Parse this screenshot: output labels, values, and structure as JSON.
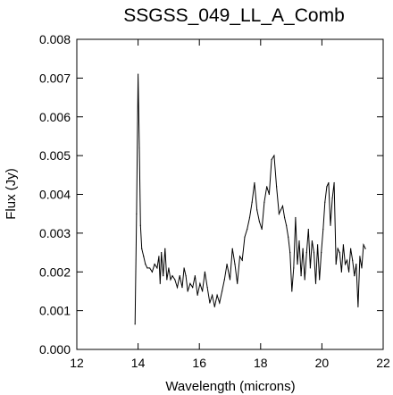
{
  "chart_data": {
    "type": "line",
    "title": "SSGSS_049_LL_A_Comb",
    "xlabel": "Wavelength (microns)",
    "ylabel": "Flux (Jy)",
    "xlim": [
      12,
      22
    ],
    "ylim": [
      0.0,
      0.008
    ],
    "x_ticks": [
      "12",
      "14",
      "16",
      "18",
      "20",
      "22"
    ],
    "y_ticks": [
      "0.000",
      "0.001",
      "0.002",
      "0.003",
      "0.004",
      "0.005",
      "0.006",
      "0.007",
      "0.008"
    ],
    "grid": false,
    "line_color": "#000000",
    "series": [
      {
        "x": [
          13.9,
          13.95,
          14.0,
          14.04,
          14.08,
          14.12,
          14.18,
          14.24,
          14.3,
          14.38,
          14.46,
          14.54,
          14.62,
          14.68,
          14.72,
          14.76,
          14.82,
          14.88,
          14.94,
          15.0,
          15.06,
          15.12,
          15.2,
          15.28,
          15.36,
          15.44,
          15.5,
          15.56,
          15.62,
          15.7,
          15.78,
          15.86,
          15.94,
          16.02,
          16.1,
          16.18,
          16.26,
          16.34,
          16.42,
          16.5,
          16.58,
          16.66,
          16.74,
          16.82,
          16.9,
          17.0,
          17.08,
          17.16,
          17.24,
          17.32,
          17.4,
          17.48,
          17.56,
          17.64,
          17.72,
          17.8,
          17.88,
          17.96,
          18.04,
          18.12,
          18.2,
          18.28,
          18.36,
          18.44,
          18.52,
          18.6,
          18.66,
          18.72,
          18.78,
          18.84,
          18.9,
          18.96,
          19.02,
          19.08,
          19.14,
          19.2,
          19.26,
          19.32,
          19.38,
          19.44,
          19.5,
          19.56,
          19.62,
          19.68,
          19.74,
          19.8,
          19.86,
          19.92,
          19.98,
          20.04,
          20.1,
          20.16,
          20.22,
          20.28,
          20.34,
          20.4,
          20.46,
          20.52,
          20.58,
          20.64,
          20.7,
          20.76,
          20.82,
          20.88,
          20.94,
          21.0,
          21.06,
          21.12,
          21.18,
          21.24,
          21.3,
          21.36,
          21.42
        ],
        "y": [
          0.00065,
          0.0035,
          0.0071,
          0.0052,
          0.0032,
          0.0026,
          0.0024,
          0.0022,
          0.0021,
          0.0021,
          0.002,
          0.0022,
          0.0021,
          0.0024,
          0.0017,
          0.0025,
          0.0019,
          0.0026,
          0.0018,
          0.0021,
          0.0018,
          0.0019,
          0.0018,
          0.0016,
          0.0019,
          0.0016,
          0.0021,
          0.0019,
          0.0015,
          0.0017,
          0.0016,
          0.0019,
          0.0014,
          0.0017,
          0.0015,
          0.002,
          0.0016,
          0.0012,
          0.0014,
          0.0011,
          0.0014,
          0.0012,
          0.0015,
          0.0018,
          0.0022,
          0.0018,
          0.0026,
          0.0022,
          0.0017,
          0.0024,
          0.0023,
          0.0029,
          0.0031,
          0.0034,
          0.0038,
          0.0043,
          0.0036,
          0.0033,
          0.0031,
          0.0038,
          0.0042,
          0.004,
          0.0049,
          0.005,
          0.0042,
          0.0035,
          0.0036,
          0.0037,
          0.0034,
          0.0032,
          0.0029,
          0.0025,
          0.0015,
          0.0021,
          0.0034,
          0.0022,
          0.0028,
          0.0019,
          0.0026,
          0.0018,
          0.0025,
          0.0031,
          0.0021,
          0.0028,
          0.0025,
          0.0017,
          0.0027,
          0.0018,
          0.0025,
          0.0031,
          0.0038,
          0.0042,
          0.0043,
          0.0032,
          0.0039,
          0.0043,
          0.0022,
          0.0026,
          0.0025,
          0.002,
          0.0027,
          0.0022,
          0.0023,
          0.002,
          0.0026,
          0.0023,
          0.0019,
          0.0022,
          0.0011,
          0.0024,
          0.0021,
          0.0027,
          0.0026
        ]
      }
    ]
  }
}
